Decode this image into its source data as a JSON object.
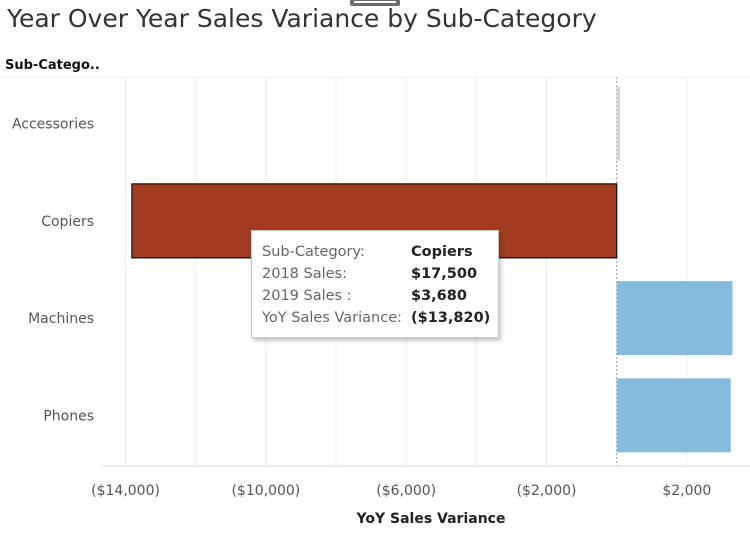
{
  "title": "Year Over Year Sales Variance by Sub-Category",
  "row_header": "Sub-Catego..",
  "chart_data": {
    "type": "bar",
    "orientation": "horizontal",
    "title": "Year Over Year Sales Variance by Sub-Category",
    "xlabel": "YoY Sales Variance",
    "ylabel": "Sub-Catego..",
    "categories": [
      "Accessories",
      "Copiers",
      "Machines",
      "Phones"
    ],
    "values": [
      100,
      -13820,
      3300,
      3250
    ],
    "xlim": [
      -14700,
      3800
    ],
    "xticks": [
      -14000,
      -10000,
      -6000,
      -2000,
      2000
    ],
    "xtick_labels": [
      "($14,000)",
      "($10,000)",
      "($6,000)",
      "($2,000)",
      "$2,000"
    ],
    "grid": "vertical",
    "colors": {
      "Accessories": "#d4d4d4",
      "Copiers": "#a23b20",
      "Machines": "#85bbdd",
      "Phones": "#85bbdd"
    },
    "highlighted": "Copiers"
  },
  "tooltip": {
    "rows": [
      {
        "key": "Sub-Category:",
        "value": "Copiers"
      },
      {
        "key": "2018 Sales:",
        "value": "$17,500"
      },
      {
        "key": "2019 Sales :",
        "value": "$3,680"
      },
      {
        "key": "YoY Sales Variance:",
        "value": "($13,820)"
      }
    ]
  }
}
